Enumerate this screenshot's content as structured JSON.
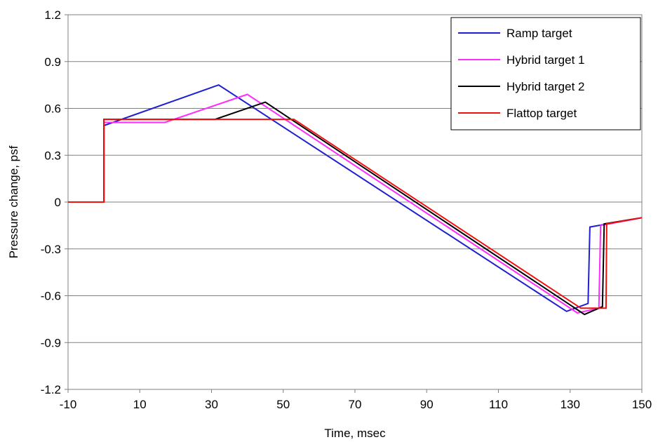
{
  "chart_data": {
    "type": "line",
    "title": "",
    "xlabel": "Time, msec",
    "ylabel": "Pressure change, psf",
    "xlim": [
      -10,
      150
    ],
    "ylim": [
      -1.2,
      1.2
    ],
    "x_ticks": [
      "-10",
      "10",
      "30",
      "50",
      "70",
      "90",
      "110",
      "130",
      "150"
    ],
    "y_ticks": [
      "1.2",
      "0.9",
      "0.6",
      "0.3",
      "0",
      "-0.3",
      "-0.6",
      "-0.9",
      "-1.2"
    ],
    "x_tick_values": [
      -10,
      10,
      30,
      50,
      70,
      90,
      110,
      130,
      150
    ],
    "y_tick_values": [
      1.2,
      0.9,
      0.6,
      0.3,
      0,
      -0.3,
      -0.6,
      -0.9,
      -1.2
    ],
    "grid": "horizontal",
    "legend_position": "top-right",
    "series": [
      {
        "name": "Ramp target",
        "color": "#1f1fd0",
        "points": [
          [
            -10,
            0
          ],
          [
            0,
            0
          ],
          [
            0,
            0.49
          ],
          [
            32,
            0.75
          ],
          [
            129,
            -0.7
          ],
          [
            135,
            -0.65
          ],
          [
            135.5,
            -0.16
          ],
          [
            150,
            -0.1
          ]
        ]
      },
      {
        "name": "Hybrid target 1",
        "color": "#ff2bff",
        "points": [
          [
            -10,
            0
          ],
          [
            0,
            0
          ],
          [
            0,
            0.51
          ],
          [
            17,
            0.51
          ],
          [
            40,
            0.69
          ],
          [
            132,
            -0.71
          ],
          [
            138,
            -0.68
          ],
          [
            138.5,
            -0.15
          ],
          [
            150,
            -0.1
          ]
        ]
      },
      {
        "name": "Hybrid target 2",
        "color": "#000000",
        "points": [
          [
            -10,
            0
          ],
          [
            0,
            0
          ],
          [
            0,
            0.53
          ],
          [
            31,
            0.53
          ],
          [
            45,
            0.64
          ],
          [
            134,
            -0.72
          ],
          [
            139,
            -0.67
          ],
          [
            139.5,
            -0.14
          ],
          [
            150,
            -0.1
          ]
        ]
      },
      {
        "name": "Flattop target",
        "color": "#ee1111",
        "points": [
          [
            -10,
            0
          ],
          [
            0,
            0
          ],
          [
            0,
            0.53
          ],
          [
            53,
            0.53
          ],
          [
            133,
            -0.68
          ],
          [
            140,
            -0.68
          ],
          [
            140.2,
            -0.14
          ],
          [
            150,
            -0.1
          ]
        ]
      }
    ]
  }
}
